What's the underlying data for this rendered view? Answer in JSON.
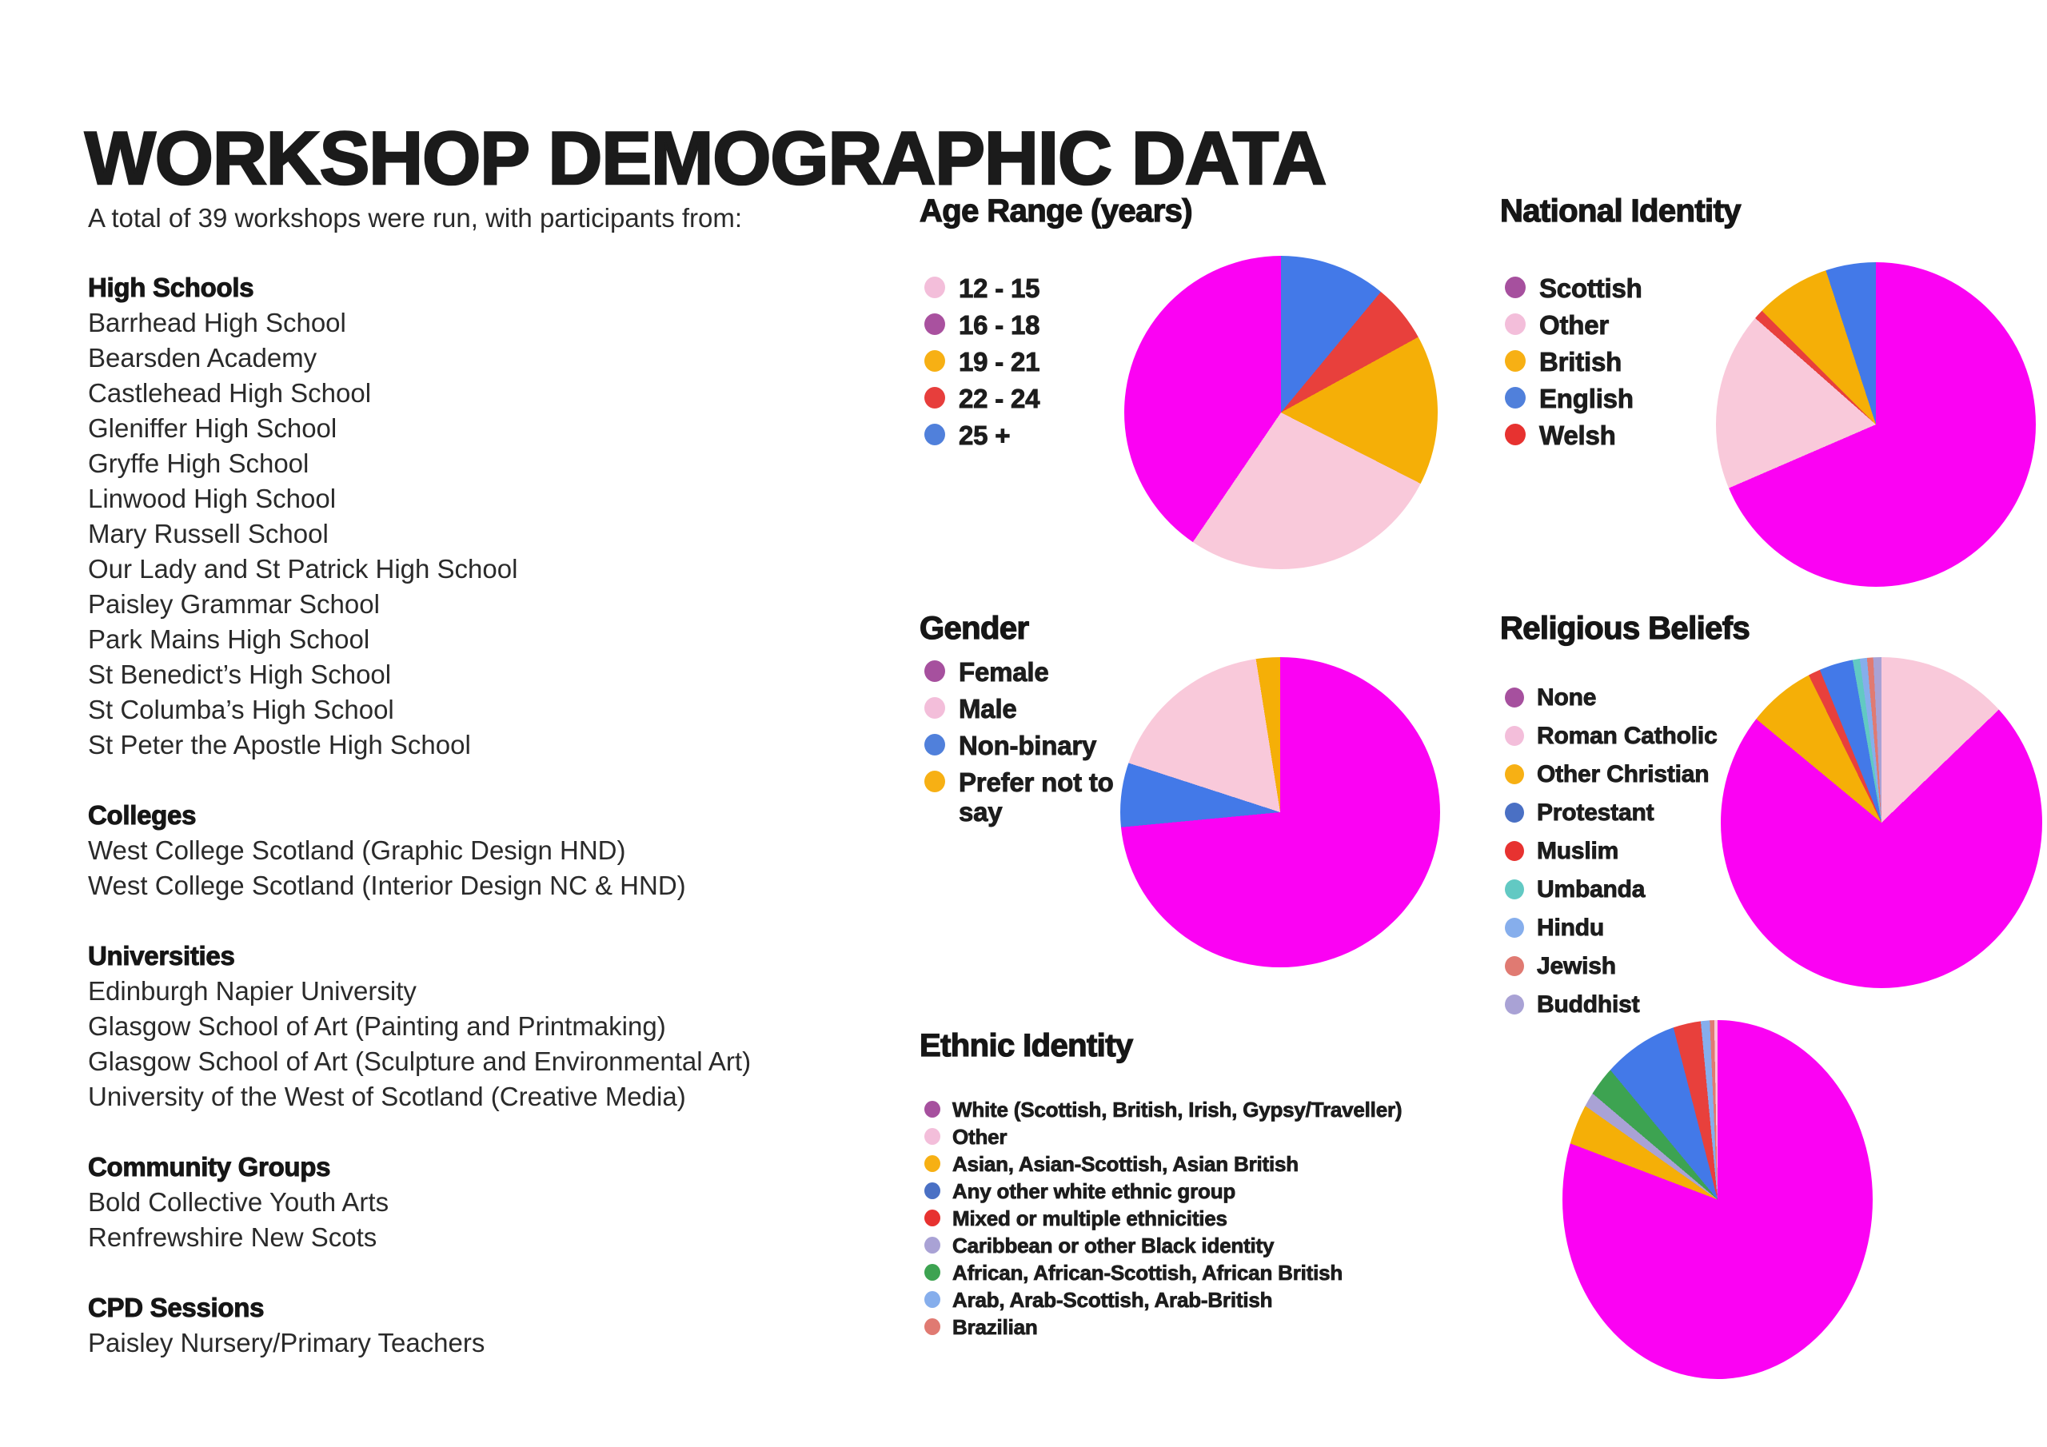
{
  "page": {
    "title": "WORKSHOP DEMOGRAPHIC DATA",
    "intro": "A total of 39 workshops were run, with participants from:"
  },
  "participants": {
    "sections": [
      {
        "heading": "High Schools",
        "items": [
          "Barrhead High School",
          "Bearsden Academy",
          "Castlehead High School",
          "Gleniffer High School",
          "Gryffe High School",
          "Linwood High School",
          "Mary Russell School",
          "Our Lady and St Patrick High School",
          "Paisley Grammar School",
          "Park Mains High School",
          "St Benedict’s High School",
          "St Columba’s High School",
          "St Peter the Apostle High School"
        ]
      },
      {
        "heading": "Colleges",
        "items": [
          "West College Scotland (Graphic Design HND)",
          "West College Scotland (Interior Design NC & HND)"
        ]
      },
      {
        "heading": "Universities",
        "items": [
          "Edinburgh Napier University",
          "Glasgow School of Art (Painting and Printmaking)",
          "Glasgow School of Art (Sculpture and Environmental Art)",
          "University of the West of Scotland (Creative Media)"
        ]
      },
      {
        "heading": "Community Groups",
        "items": [
          "Bold Collective Youth Arts",
          "Renfrewshire New Scots"
        ]
      },
      {
        "heading": "CPD Sessions",
        "items": [
          "Paisley Nursery/Primary Teachers"
        ]
      }
    ]
  },
  "palette": {
    "magenta": "#FB02F3",
    "light_pink": "#F9C9DA",
    "purple": "#A6509E",
    "amber": "#F6B10C",
    "red": "#E73E3C",
    "blue": "#4680E8",
    "teal": "#62C9C3",
    "light_blue": "#86AEEC",
    "salmon": "#E07A72",
    "lavender": "#A9A2D5",
    "green": "#3DA351"
  },
  "chart_data": [
    {
      "id": "age",
      "type": "pie",
      "title": "Age Range (years)",
      "legend_position": "left",
      "grid": false,
      "categories": [
        "12 - 15",
        "16 - 18",
        "19 - 21",
        "22 - 24",
        "25 +"
      ],
      "values": [
        27,
        40.5,
        15.5,
        6,
        11
      ],
      "legend": [
        {
          "label": "12 - 15",
          "color": "#F3BEDA"
        },
        {
          "label": "16 - 18",
          "color": "#A9519F"
        },
        {
          "label": "19 - 21",
          "color": "#F7B014"
        },
        {
          "label": "22 - 24",
          "color": "#E73E3C"
        },
        {
          "label": "25 +",
          "color": "#5080DB"
        }
      ],
      "slices_clockwise_from_top": [
        {
          "name": "25 +",
          "color": "#4379E8",
          "pct": 11
        },
        {
          "name": "22 - 24",
          "color": "#E8403C",
          "pct": 6
        },
        {
          "name": "19 - 21",
          "color": "#F5AF07",
          "pct": 15.5
        },
        {
          "name": "12 - 15",
          "color": "#F9C9DA",
          "pct": 27
        },
        {
          "name": "16 - 18",
          "color": "#FB02F3",
          "pct": 40.5
        }
      ]
    },
    {
      "id": "national",
      "type": "pie",
      "title": "National Identity",
      "legend_position": "left",
      "grid": false,
      "categories": [
        "Scottish",
        "Other",
        "British",
        "English",
        "Welsh"
      ],
      "values": [
        68.5,
        18,
        7.5,
        5,
        1
      ],
      "legend": [
        {
          "label": "Scottish",
          "color": "#A6509E"
        },
        {
          "label": "Other",
          "color": "#F3BEDA"
        },
        {
          "label": "British",
          "color": "#F7B014"
        },
        {
          "label": "English",
          "color": "#5080DB"
        },
        {
          "label": "Welsh",
          "color": "#E73230"
        }
      ],
      "slices_clockwise_from_top": [
        {
          "name": "Scottish",
          "color": "#FB02F3",
          "pct": 68.5
        },
        {
          "name": "Other",
          "color": "#F9C9DA",
          "pct": 18
        },
        {
          "name": "Welsh",
          "color": "#E8403C",
          "pct": 1
        },
        {
          "name": "British",
          "color": "#F5AF07",
          "pct": 7.5
        },
        {
          "name": "English",
          "color": "#4379E8",
          "pct": 5
        }
      ]
    },
    {
      "id": "gender",
      "type": "pie",
      "title": "Gender",
      "legend_position": "left",
      "grid": false,
      "categories": [
        "Female",
        "Male",
        "Non-binary",
        "Prefer not to say"
      ],
      "values": [
        73.5,
        17.5,
        6.5,
        2.5
      ],
      "legend": [
        {
          "label": "Female",
          "color": "#A6509E"
        },
        {
          "label": "Male",
          "color": "#F3BEDA"
        },
        {
          "label": "Non-binary",
          "color": "#5080DB"
        },
        {
          "label": "Prefer not to say",
          "color": "#F7B014"
        }
      ],
      "slices_clockwise_from_top": [
        {
          "name": "Female",
          "color": "#FB02F3",
          "pct": 73.5
        },
        {
          "name": "Non-binary",
          "color": "#4379E8",
          "pct": 6.5
        },
        {
          "name": "Male",
          "color": "#F9C9DA",
          "pct": 17.5
        },
        {
          "name": "Prefer not to say",
          "color": "#F5AF07",
          "pct": 2.5
        }
      ]
    },
    {
      "id": "religious",
      "type": "pie",
      "title": "Religious Beliefs",
      "legend_position": "left",
      "grid": false,
      "categories": [
        "None",
        "Roman Catholic",
        "Other Christian",
        "Protestant",
        "Muslim",
        "Umbanda",
        "Hindu",
        "Jewish",
        "Buddhist"
      ],
      "values": [
        73.2,
        12.8,
        6.7,
        3.3,
        1.2,
        0.7,
        0.7,
        0.6,
        0.8
      ],
      "legend": [
        {
          "label": "None",
          "color": "#A6509E"
        },
        {
          "label": "Roman Catholic",
          "color": "#F3BEDA"
        },
        {
          "label": "Other Christian",
          "color": "#F7B014"
        },
        {
          "label": "Protestant",
          "color": "#4A70C4"
        },
        {
          "label": "Muslim",
          "color": "#E73230"
        },
        {
          "label": "Umbanda",
          "color": "#62C9C3"
        },
        {
          "label": "Hindu",
          "color": "#86AEEC"
        },
        {
          "label": "Jewish",
          "color": "#E07A72"
        },
        {
          "label": "Buddhist",
          "color": "#A9A2D5"
        }
      ],
      "slices_clockwise_from_top": [
        {
          "name": "Roman Catholic",
          "color": "#F9C9DA",
          "pct": 12.8
        },
        {
          "name": "None",
          "color": "#FB02F3",
          "pct": 73.2
        },
        {
          "name": "Other Christian",
          "color": "#F5AF07",
          "pct": 6.7
        },
        {
          "name": "Muslim",
          "color": "#E8403C",
          "pct": 1.2
        },
        {
          "name": "Protestant",
          "color": "#4379E8",
          "pct": 3.3
        },
        {
          "name": "Umbanda",
          "color": "#62C9C3",
          "pct": 0.7
        },
        {
          "name": "Hindu",
          "color": "#86AEEC",
          "pct": 0.7
        },
        {
          "name": "Jewish",
          "color": "#E07A72",
          "pct": 0.6
        },
        {
          "name": "Buddhist",
          "color": "#A9A2D5",
          "pct": 0.8
        }
      ]
    },
    {
      "id": "ethnic",
      "type": "pie",
      "title": "Ethnic Identity",
      "legend_position": "left",
      "grid": false,
      "categories": [
        "White (Scottish, British, Irish, Gypsy/Traveller)",
        "Other",
        "Asian, Asian-Scottish, Asian British",
        "Any other white ethnic group",
        "Mixed or multiple ethnicities",
        "Caribbean or other Black identity",
        "African, African-Scottish, African British",
        "Arab, Arab-Scottish, Arab-British",
        "Brazilian"
      ],
      "values": [
        80.8,
        0.3,
        4,
        7,
        2.5,
        1.4,
        2.8,
        0.8,
        0.4
      ],
      "legend": [
        {
          "label": "White (Scottish, British, Irish, Gypsy/Traveller)",
          "color": "#A6509E"
        },
        {
          "label": "Other",
          "color": "#F3BEDA"
        },
        {
          "label": "Asian, Asian-Scottish, Asian British",
          "color": "#F7B014"
        },
        {
          "label": "Any other white ethnic group",
          "color": "#4A70C4"
        },
        {
          "label": "Mixed or multiple ethnicities",
          "color": "#E73230"
        },
        {
          "label": "Caribbean or other Black identity",
          "color": "#A9A2D5"
        },
        {
          "label": "African, African-Scottish, African British",
          "color": "#3DA351"
        },
        {
          "label": "Arab, Arab-Scottish, Arab-British",
          "color": "#86AEEC"
        },
        {
          "label": "Brazilian",
          "color": "#E07A72"
        }
      ],
      "slices_clockwise_from_top": [
        {
          "name": "White (Scottish, British, Irish, Gypsy/Traveller)",
          "color": "#FB02F3",
          "pct": 80.8
        },
        {
          "name": "Asian, Asian-Scottish, Asian British",
          "color": "#F5AF07",
          "pct": 4
        },
        {
          "name": "Caribbean or other Black identity",
          "color": "#A9A2D5",
          "pct": 1.4
        },
        {
          "name": "African, African-Scottish, African British",
          "color": "#3DA351",
          "pct": 2.8
        },
        {
          "name": "Any other white ethnic group",
          "color": "#4379E8",
          "pct": 7
        },
        {
          "name": "Mixed or multiple ethnicities",
          "color": "#E8403C",
          "pct": 2.5
        },
        {
          "name": "Arab, Arab-Scottish, Arab-British",
          "color": "#86AEEC",
          "pct": 0.8
        },
        {
          "name": "Brazilian",
          "color": "#E07A72",
          "pct": 0.4
        },
        {
          "name": "Other",
          "color": "#F9C9DA",
          "pct": 0.3
        }
      ]
    }
  ]
}
